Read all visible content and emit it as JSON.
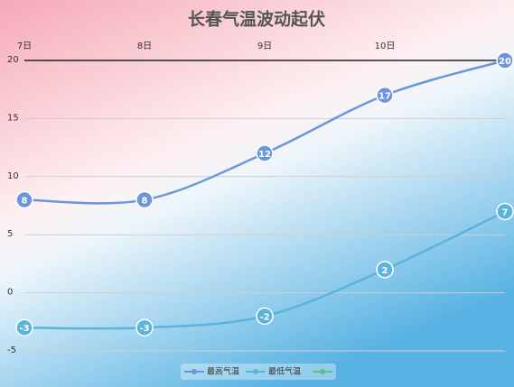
{
  "chart_data": {
    "type": "line",
    "title": "长春气温波动起伏",
    "categories": [
      "7日",
      "8日",
      "9日",
      "10日",
      null
    ],
    "series": [
      {
        "name": "最高气温",
        "color": "#6b96d9",
        "values": [
          8,
          8,
          12,
          17,
          20
        ]
      },
      {
        "name": "最低气温",
        "color": "#5cb3dd",
        "values": [
          -3,
          -3,
          -2,
          2,
          7
        ]
      }
    ],
    "ylim": [
      -5,
      20
    ],
    "yticks": [
      -5,
      0,
      5,
      10,
      15,
      20
    ],
    "grid": true
  }
}
